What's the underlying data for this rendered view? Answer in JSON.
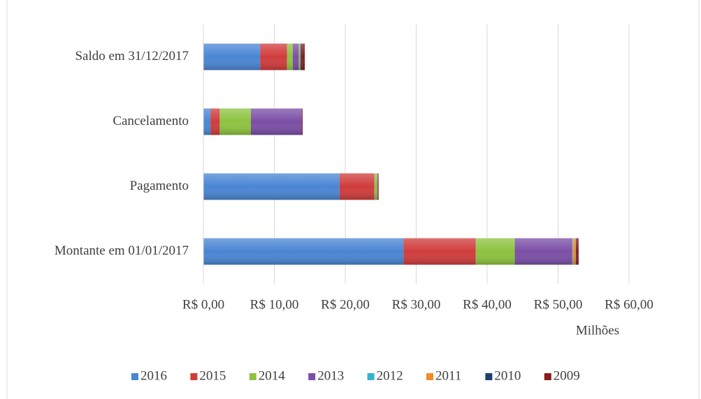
{
  "chart_data": {
    "type": "stacked_barh",
    "categories": [
      "Saldo em 31/12/2017",
      "Cancelamento",
      "Pagamento",
      "Montante em 01/01/2017"
    ],
    "series": [
      {
        "name": "2016",
        "color": "#4a86d4",
        "values": [
          8.0,
          1.0,
          19.2,
          28.2
        ]
      },
      {
        "name": "2015",
        "color": "#d03c3c",
        "values": [
          3.8,
          1.3,
          4.9,
          10.2
        ]
      },
      {
        "name": "2014",
        "color": "#8dc33f",
        "values": [
          0.8,
          4.4,
          0.4,
          5.5
        ]
      },
      {
        "name": "2013",
        "color": "#7b4fa6",
        "values": [
          0.8,
          7.2,
          0.1,
          8.1
        ]
      },
      {
        "name": "2012",
        "color": "#33b3cf",
        "values": [
          0.1,
          0,
          0,
          0.1
        ]
      },
      {
        "name": "2011",
        "color": "#f28c28",
        "values": [
          0.2,
          0,
          0,
          0.4
        ]
      },
      {
        "name": "2010",
        "color": "#1f3f6e",
        "values": [
          0.2,
          0,
          0,
          0.1
        ]
      },
      {
        "name": "2009",
        "color": "#8b1a1a",
        "values": [
          0.4,
          0.1,
          0.1,
          0.3
        ]
      }
    ],
    "xlabel": "Milhões",
    "xlim": [
      0,
      60
    ],
    "xticks": [
      {
        "value": 0,
        "label": "R$ 0,00"
      },
      {
        "value": 10,
        "label": "R$ 10,00"
      },
      {
        "value": 20,
        "label": "R$ 20,00"
      },
      {
        "value": 30,
        "label": "R$ 30,00"
      },
      {
        "value": 40,
        "label": "R$ 40,00"
      },
      {
        "value": 50,
        "label": "R$ 50,00"
      },
      {
        "value": 60,
        "label": "R$ 60,00"
      }
    ],
    "grid": true,
    "legend": "bottom"
  }
}
